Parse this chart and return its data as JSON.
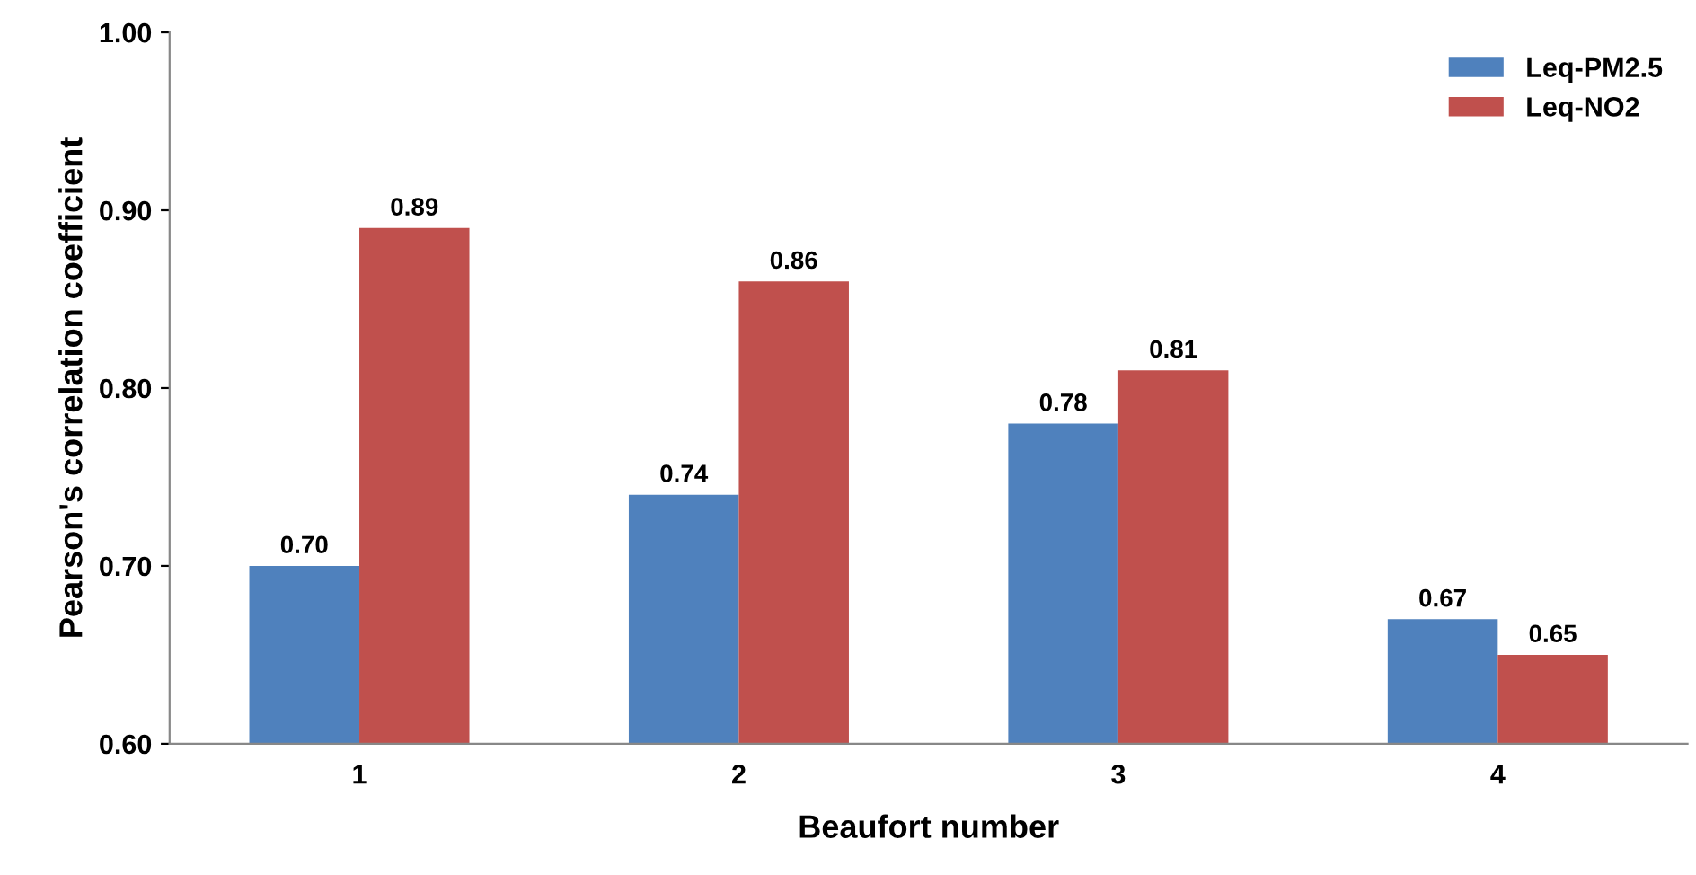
{
  "chart_data": {
    "type": "bar",
    "xlabel": "Beaufort number",
    "ylabel": "Pearson's correlation coefficient",
    "categories": [
      "1",
      "2",
      "3",
      "4"
    ],
    "series": [
      {
        "name": "Leq-PM2.5",
        "color": "#4f81bd",
        "values": [
          0.7,
          0.74,
          0.78,
          0.67
        ],
        "value_labels": [
          "0.70",
          "0.74",
          "0.78",
          "0.67"
        ]
      },
      {
        "name": "Leq-NO2",
        "color": "#c0504d",
        "values": [
          0.89,
          0.86,
          0.81,
          0.65
        ],
        "value_labels": [
          "0.89",
          "0.86",
          "0.81",
          "0.65"
        ]
      }
    ],
    "ylim": [
      0.6,
      1.0
    ],
    "yticks": [
      {
        "value": 0.6,
        "label": "0.60"
      },
      {
        "value": 0.7,
        "label": "0.70"
      },
      {
        "value": 0.8,
        "label": "0.80"
      },
      {
        "value": 0.9,
        "label": "0.90"
      },
      {
        "value": 1.0,
        "label": "1.00"
      }
    ],
    "grid": false,
    "legend": "top right"
  }
}
